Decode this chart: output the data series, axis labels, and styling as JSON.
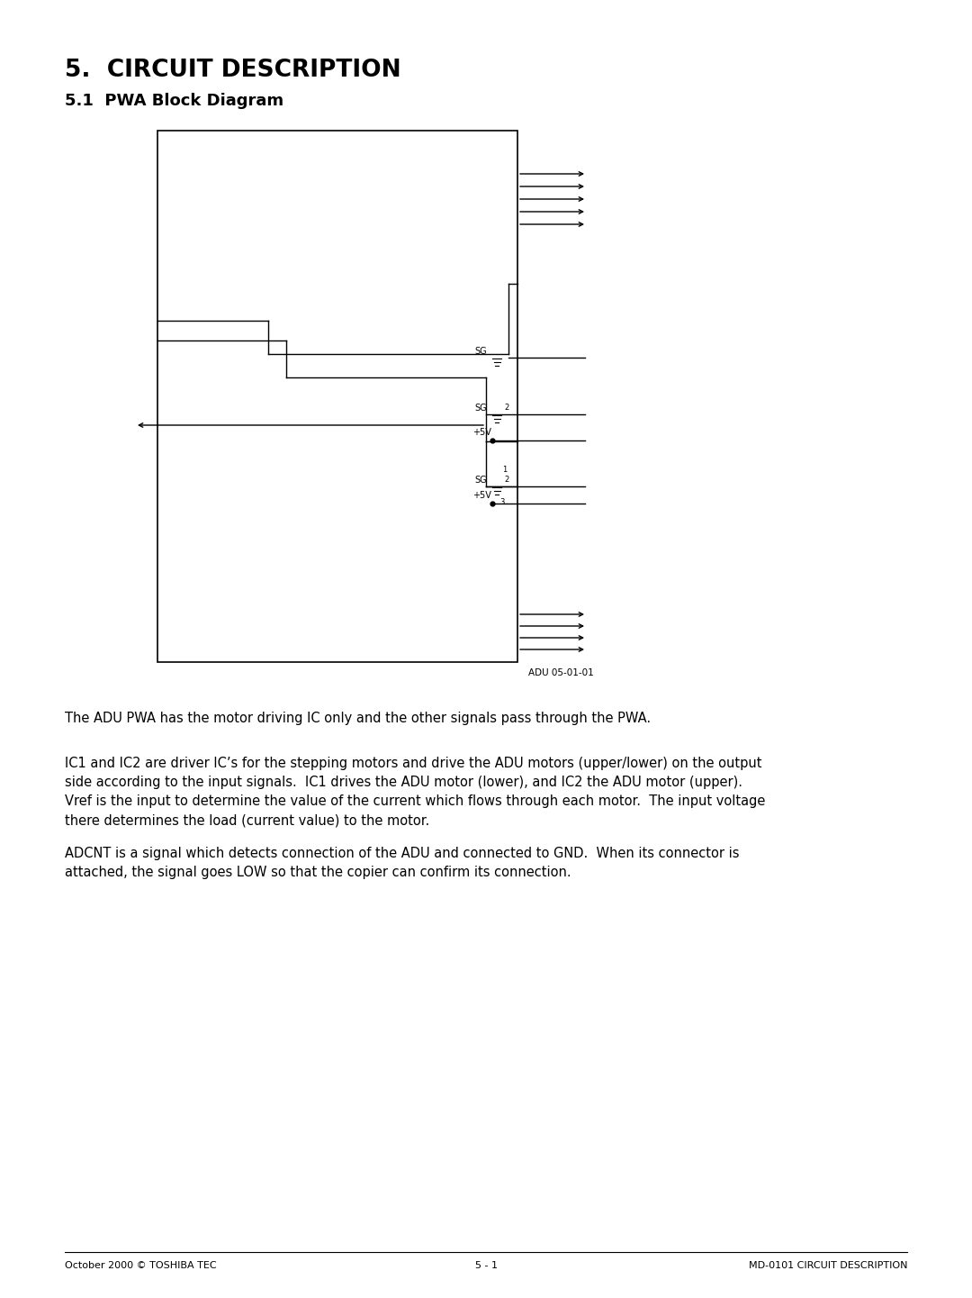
{
  "title1": "5.  CIRCUIT DESCRIPTION",
  "title2": "5.1  PWA Block Diagram",
  "diagram_label": "ADU 05-01-01",
  "para1": "The ADU PWA has the motor driving IC only and the other signals pass through the PWA.",
  "para2_lines": [
    "IC1 and IC2 are driver IC’s for the stepping motors and drive the ADU motors (upper/lower) on the output",
    "side according to the input signals.  IC1 drives the ADU motor (lower), and IC2 the ADU motor (upper).",
    "Vref is the input to determine the value of the current which flows through each motor.  The input voltage",
    "there determines the load (current value) to the motor."
  ],
  "para3_lines": [
    "ADCNT is a signal which detects connection of the ADU and connected to GND.  When its connector is",
    "attached, the signal goes LOW so that the copier can confirm its connection."
  ],
  "footer_left": "October 2000 © TOSHIBA TEC",
  "footer_center": "5 - 1",
  "footer_right": "MD-0101 CIRCUIT DESCRIPTION",
  "bg_color": "#ffffff",
  "line_color": "#000000",
  "text_color": "#000000"
}
